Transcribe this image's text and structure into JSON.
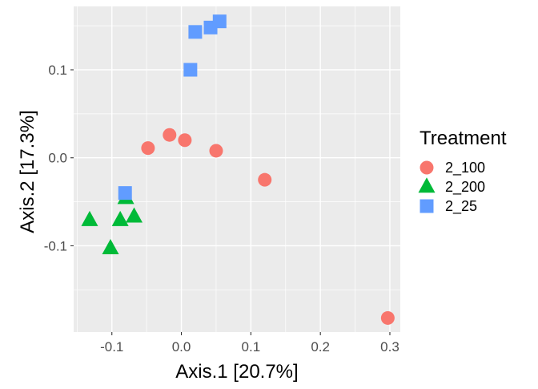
{
  "chart_data": {
    "type": "scatter",
    "title": "",
    "xlabel": "Axis.1   [20.7%]",
    "ylabel": "Axis.2   [17.3%]",
    "xlim": [
      -0.155,
      0.315
    ],
    "ylim": [
      -0.198,
      0.172
    ],
    "xticks": [
      -0.1,
      0.0,
      0.1,
      0.2,
      0.3
    ],
    "xtick_labels": [
      "-0.1",
      "0.0",
      "0.1",
      "0.2",
      "0.3"
    ],
    "yticks": [
      -0.1,
      0.0,
      0.1
    ],
    "ytick_labels": [
      "-0.1",
      "0.0",
      "0.1"
    ],
    "grid": true,
    "background": "#EBEBEB",
    "legend": {
      "title": "Treatment",
      "position": "right"
    },
    "series": [
      {
        "name": "2_100",
        "color": "#F8766D",
        "shape": "circle",
        "points": [
          {
            "x": -0.048,
            "y": 0.011
          },
          {
            "x": -0.017,
            "y": 0.026
          },
          {
            "x": 0.005,
            "y": 0.02
          },
          {
            "x": 0.05,
            "y": 0.008
          },
          {
            "x": 0.12,
            "y": -0.025
          },
          {
            "x": 0.297,
            "y": -0.182
          }
        ]
      },
      {
        "name": "2_200",
        "color": "#00BA38",
        "shape": "triangle",
        "points": [
          {
            "x": -0.132,
            "y": -0.071
          },
          {
            "x": -0.102,
            "y": -0.103
          },
          {
            "x": -0.088,
            "y": -0.071
          },
          {
            "x": -0.08,
            "y": -0.046
          },
          {
            "x": -0.068,
            "y": -0.067
          }
        ]
      },
      {
        "name": "2_25",
        "color": "#619CFF",
        "shape": "square",
        "points": [
          {
            "x": -0.081,
            "y": -0.04
          },
          {
            "x": 0.013,
            "y": 0.1
          },
          {
            "x": 0.02,
            "y": 0.143
          },
          {
            "x": 0.042,
            "y": 0.148
          },
          {
            "x": 0.055,
            "y": 0.155
          }
        ]
      }
    ]
  }
}
